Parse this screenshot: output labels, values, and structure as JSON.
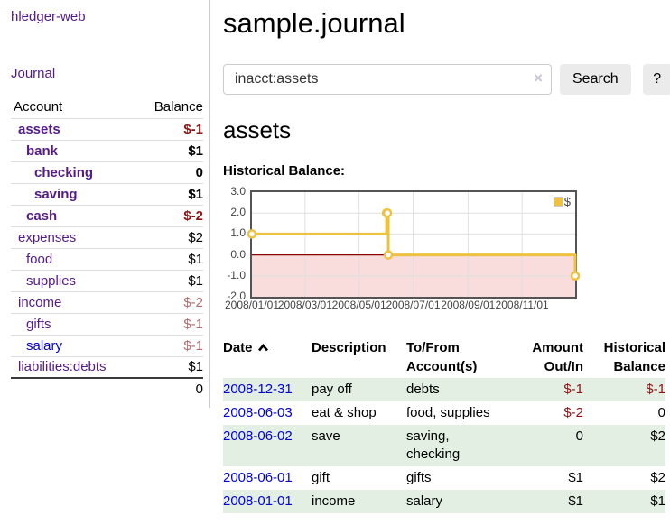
{
  "colors": {
    "link_purple": "#551a8b",
    "link_blue": "#0000e0",
    "negative_dark": "#941414",
    "negative_light": "#b46a6e",
    "row_green": "#e2efe2",
    "series_gold": "#edc240"
  },
  "sidebar": {
    "app_title": "hledger-web",
    "nav_journal": "Journal",
    "table": {
      "headers": [
        "Account",
        "Balance"
      ],
      "accounts": [
        {
          "name": "assets",
          "balance": "$-1",
          "level": 0,
          "bold": true,
          "neg": "dark"
        },
        {
          "name": "bank",
          "balance": "$1",
          "level": 1,
          "bold": true,
          "neg": null
        },
        {
          "name": "checking",
          "balance": "0",
          "level": 2,
          "bold": true,
          "neg": null
        },
        {
          "name": "saving",
          "balance": "$1",
          "level": 2,
          "bold": true,
          "neg": null
        },
        {
          "name": "cash",
          "balance": "$-2",
          "level": 1,
          "bold": true,
          "neg": "dark"
        },
        {
          "name": "expenses",
          "balance": "$2",
          "level": 0,
          "bold": false,
          "neg": null
        },
        {
          "name": "food",
          "balance": "$1",
          "level": 1,
          "bold": false,
          "neg": null
        },
        {
          "name": "supplies",
          "balance": "$1",
          "level": 1,
          "bold": false,
          "neg": null
        },
        {
          "name": "income",
          "balance": "$-2",
          "level": 0,
          "bold": false,
          "neg": "light"
        },
        {
          "name": "gifts",
          "balance": "$-1",
          "level": 1,
          "bold": false,
          "neg": "light"
        },
        {
          "name": "salary",
          "balance": "$-1",
          "level": 1,
          "bold": false,
          "neg": "light",
          "unvisited": true
        },
        {
          "name": "liabilities:debts",
          "balance": "$1",
          "level": 0,
          "bold": false,
          "neg": null
        }
      ],
      "total": "0"
    }
  },
  "main": {
    "title": "sample.journal",
    "search": {
      "value": "inacct:assets",
      "clear_icon": "×",
      "search_button": "Search",
      "help_button": "?"
    },
    "account_heading": "assets",
    "chart_label": "Historical Balance:"
  },
  "chart_data": {
    "type": "line",
    "step": true,
    "title": "Historical Balance",
    "xlim": [
      "2008-01-01",
      "2008-12-31"
    ],
    "ylim": [
      -2,
      3
    ],
    "grid": true,
    "legend_position": "top-right",
    "series": [
      {
        "name": "$",
        "color": "#edc240",
        "points": [
          {
            "date": "2008-01-01",
            "value": 1
          },
          {
            "date": "2008-06-01",
            "value": 2
          },
          {
            "date": "2008-06-02",
            "value": 2
          },
          {
            "date": "2008-06-03",
            "value": 0
          },
          {
            "date": "2008-12-31",
            "value": -1
          }
        ]
      }
    ],
    "x_ticks": [
      {
        "label": "2008/01/01",
        "date": "2008-01-01"
      },
      {
        "label": "2008/03/01",
        "date": "2008-03-01"
      },
      {
        "label": "2008/05/01",
        "date": "2008-05-01"
      },
      {
        "label": "2008/07/01",
        "date": "2008-07-01"
      },
      {
        "label": "2008/09/01",
        "date": "2008-09-01"
      },
      {
        "label": "2008/11/01",
        "date": "2008-11-01"
      }
    ],
    "y_ticks": [
      {
        "label": "3.0",
        "value": 3
      },
      {
        "label": "2.0",
        "value": 2
      },
      {
        "label": "1.0",
        "value": 1
      },
      {
        "label": "0.0",
        "value": 0
      },
      {
        "label": "-1.0",
        "value": -1
      },
      {
        "label": "-2.0",
        "value": -2
      }
    ],
    "negative_region_color": "#f9dcdc",
    "zero_line_color": "#8b0000",
    "gridline_color": "#e0e0e0",
    "border_color": "#545454"
  },
  "table": {
    "headers": {
      "date": "Date",
      "description": "Description",
      "accounts": "To/From Account(s)",
      "amount": "Amount Out/In",
      "balance": "Historical Balance"
    },
    "rows": [
      {
        "date": "2008-12-31",
        "description": "pay off",
        "accounts": "debts",
        "amount": "$-1",
        "balance": "$-1",
        "amount_neg": true,
        "balance_neg": true,
        "shaded": true
      },
      {
        "date": "2008-06-03",
        "description": "eat & shop",
        "accounts": "food, supplies",
        "amount": "$-2",
        "balance": "0",
        "amount_neg": true,
        "balance_neg": false,
        "shaded": false
      },
      {
        "date": "2008-06-02",
        "description": "save",
        "accounts": "saving, checking",
        "amount": "0",
        "balance": "$2",
        "amount_neg": false,
        "balance_neg": false,
        "shaded": true
      },
      {
        "date": "2008-06-01",
        "description": "gift",
        "accounts": "gifts",
        "amount": "$1",
        "balance": "$2",
        "amount_neg": false,
        "balance_neg": false,
        "shaded": false
      },
      {
        "date": "2008-01-01",
        "description": "income",
        "accounts": "salary",
        "amount": "$1",
        "balance": "$1",
        "amount_neg": false,
        "balance_neg": false,
        "shaded": true
      }
    ]
  }
}
